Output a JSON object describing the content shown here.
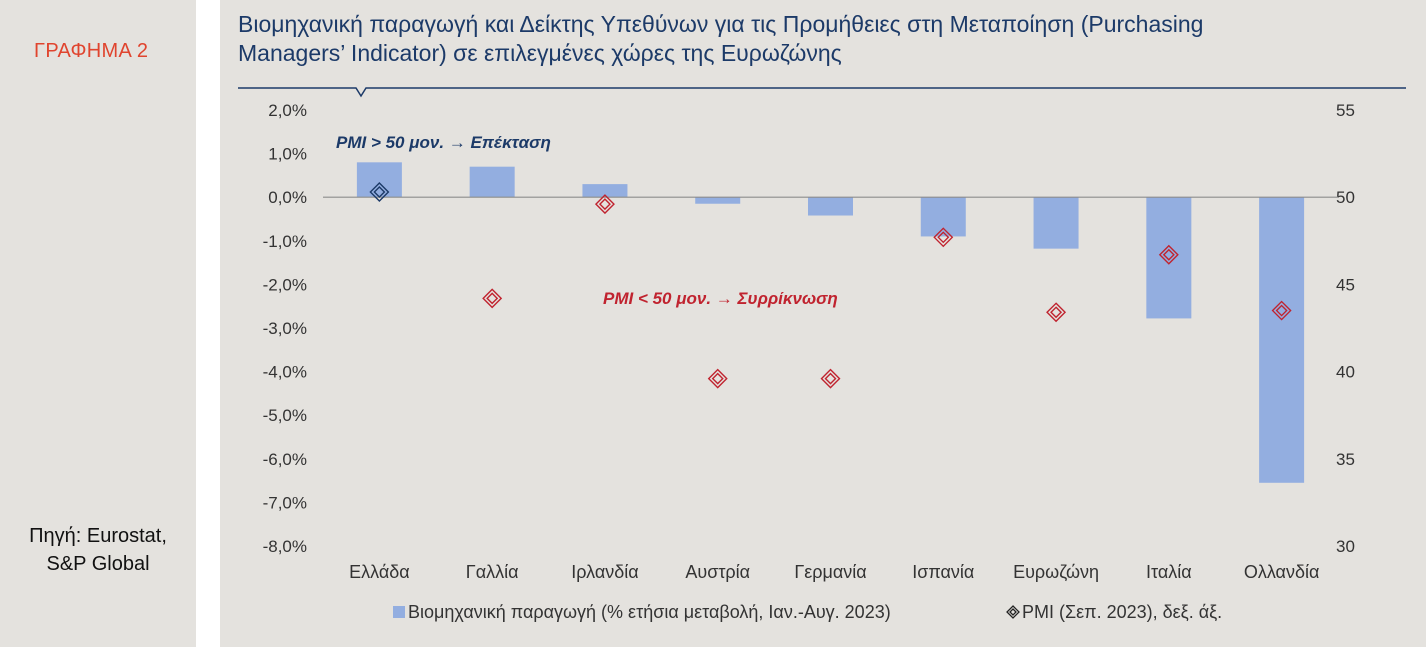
{
  "sidebar": {
    "graph_label": "ΓΡΑΦΗΜΑ 2",
    "source_line1": "Πηγή: Eurostat,",
    "source_line2": "S&P Global"
  },
  "colors": {
    "bar": "#93aee0",
    "above_marker": "#1c3a68",
    "below_marker": "#c0232f",
    "title": "#1c3a68",
    "graph_label": "#e0442e"
  },
  "chart_data": {
    "type": "bar",
    "title_line1": "Βιομηχανική παραγωγή και Δείκτης Υπεθύνων για τις Προμήθειες στη Μεταποίηση (Purchasing",
    "title_line2": "Managers’ Indicator) σε επιλεγμένες χώρες της Ευρωζώνης",
    "categories": [
      "Ελλάδα",
      "Γαλλία",
      "Ιρλανδία",
      "Αυστρία",
      "Γερμανία",
      "Ισπανία",
      "Ευρωζώνη",
      "Ιταλία",
      "Ολλανδία"
    ],
    "series": [
      {
        "name": "Βιομηχανική παραγωγή (% ετήσια μεταβολή, Ιαν.-Αυγ. 2023)",
        "axis": "left",
        "values": [
          0.8,
          0.7,
          0.3,
          -0.15,
          -0.42,
          -0.9,
          -1.18,
          -2.78,
          -6.55
        ]
      },
      {
        "name": "PMI (Σεπ. 2023), δεξ. άξ.",
        "axis": "right",
        "type": "scatter",
        "values": [
          50.3,
          44.2,
          49.6,
          39.6,
          39.6,
          47.7,
          43.4,
          46.7,
          43.5
        ]
      }
    ],
    "y_left": {
      "ylim": [
        -8,
        2
      ],
      "ticks": [
        2,
        1,
        0,
        -1,
        -2,
        -3,
        -4,
        -5,
        -6,
        -7,
        -8
      ],
      "tick_labels": [
        "2,0%",
        "1,0%",
        "0,0%",
        "-1,0%",
        "-2,0%",
        "-3,0%",
        "-4,0%",
        "-5,0%",
        "-6,0%",
        "-7,0%",
        "-8,0%"
      ]
    },
    "y_right": {
      "ylim": [
        30,
        55
      ],
      "ticks": [
        55,
        50,
        45,
        40,
        35,
        30
      ],
      "tick_labels": [
        "55",
        "50",
        "45",
        "40",
        "35",
        "30"
      ]
    },
    "annotations": {
      "above": "PMI > 50 μον. → Επέκταση",
      "below": "PMI < 50 μον. → Συρρίκνωση"
    },
    "legend_position": "bottom",
    "grid": false
  }
}
